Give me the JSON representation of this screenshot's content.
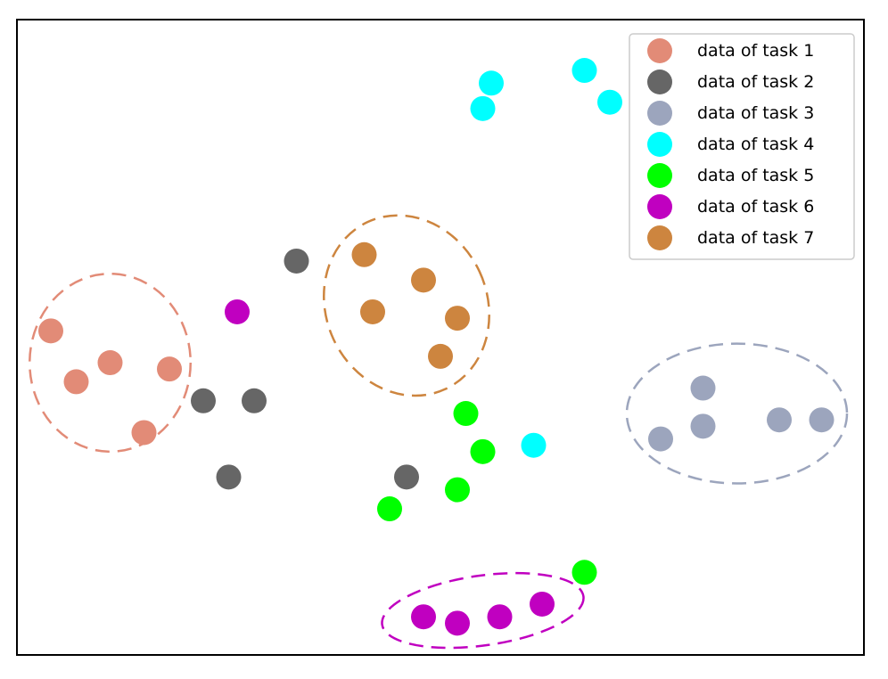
{
  "chart_data": {
    "type": "scatter",
    "title": "",
    "xlabel": "",
    "ylabel": "",
    "xlim": [
      0,
      10
    ],
    "ylim": [
      0,
      10
    ],
    "axis_ticks": false,
    "grid": false,
    "legend_position": "top-right",
    "series": [
      {
        "name": "data of task 1",
        "color": "#e28b77",
        "points": [
          [
            0.4,
            5.1
          ],
          [
            1.1,
            4.6
          ],
          [
            0.7,
            4.3
          ],
          [
            1.8,
            4.5
          ],
          [
            1.5,
            3.5
          ]
        ],
        "cluster_ellipse": {
          "center": [
            1.1,
            4.6
          ],
          "radius_x": 0.95,
          "radius_y": 1.4,
          "angle": 0
        }
      },
      {
        "name": "data of task 2",
        "color": "#666666",
        "points": [
          [
            3.3,
            6.2
          ],
          [
            2.2,
            4.0
          ],
          [
            2.8,
            4.0
          ],
          [
            2.5,
            2.8
          ],
          [
            4.6,
            2.8
          ]
        ]
      },
      {
        "name": "data of task 3",
        "color": "#9ca5bd",
        "points": [
          [
            8.1,
            4.2
          ],
          [
            7.6,
            3.4
          ],
          [
            8.1,
            3.6
          ],
          [
            9.0,
            3.7
          ],
          [
            9.5,
            3.7
          ]
        ],
        "cluster_ellipse": {
          "center": [
            8.5,
            3.8
          ],
          "radius_x": 1.3,
          "radius_y": 1.1,
          "angle": 0
        }
      },
      {
        "name": "data of task 4",
        "color": "#00ffff",
        "points": [
          [
            5.6,
            9.0
          ],
          [
            5.5,
            8.6
          ],
          [
            6.7,
            9.2
          ],
          [
            7.0,
            8.7
          ],
          [
            6.1,
            3.3
          ]
        ]
      },
      {
        "name": "data of task 5",
        "color": "#00ff00",
        "points": [
          [
            5.3,
            3.8
          ],
          [
            5.5,
            3.2
          ],
          [
            5.2,
            2.6
          ],
          [
            4.4,
            2.3
          ],
          [
            6.7,
            1.3
          ]
        ]
      },
      {
        "name": "data of task 6",
        "color": "#c000c0",
        "points": [
          [
            2.6,
            5.4
          ],
          [
            4.8,
            0.6
          ],
          [
            5.2,
            0.5
          ],
          [
            5.7,
            0.6
          ],
          [
            6.2,
            0.8
          ]
        ],
        "cluster_ellipse": {
          "center": [
            5.5,
            0.7
          ],
          "radius_x": 1.2,
          "radius_y": 0.55,
          "angle": -8
        }
      },
      {
        "name": "data of task 7",
        "color": "#cd853f",
        "points": [
          [
            4.1,
            6.3
          ],
          [
            4.8,
            5.9
          ],
          [
            4.2,
            5.4
          ],
          [
            5.2,
            5.3
          ],
          [
            5.0,
            4.7
          ]
        ],
        "cluster_ellipse": {
          "center": [
            4.6,
            5.5
          ],
          "radius_x": 0.95,
          "radius_y": 1.45,
          "angle": -25
        }
      }
    ]
  }
}
